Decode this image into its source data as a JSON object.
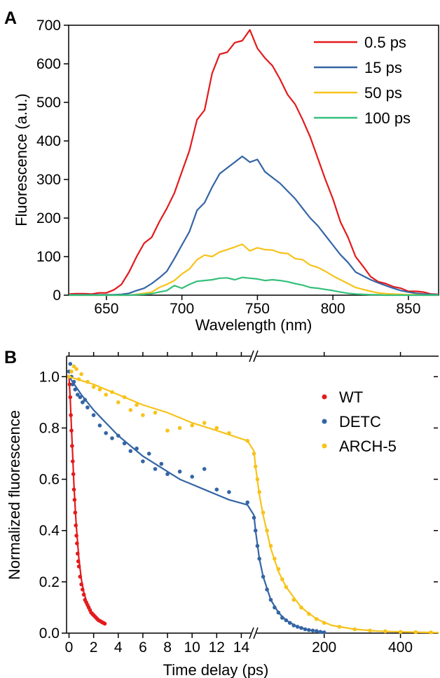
{
  "colors": {
    "red": "#e31a1c",
    "blue": "#3465a4",
    "yellow": "#f7c31b",
    "green": "#36c07a"
  },
  "chart_data": [
    {
      "panel": "A",
      "type": "line",
      "xlabel": "Wavelength (nm)",
      "ylabel": "Fluorescence (a.u.)",
      "xlim": [
        625,
        870
      ],
      "ylim": [
        0,
        700
      ],
      "xticks": [
        650,
        700,
        750,
        800,
        850
      ],
      "yticks": [
        0,
        100,
        200,
        300,
        400,
        500,
        600,
        700
      ],
      "legend_position": "top-right",
      "series": [
        {
          "name": "0.5 ps",
          "color": "#e31a1c",
          "x": [
            625,
            630,
            635,
            640,
            645,
            650,
            655,
            660,
            665,
            670,
            675,
            680,
            685,
            690,
            695,
            700,
            705,
            710,
            715,
            720,
            725,
            730,
            735,
            740,
            745,
            750,
            755,
            760,
            765,
            770,
            775,
            780,
            785,
            790,
            795,
            800,
            805,
            810,
            815,
            820,
            825,
            830,
            835,
            840,
            845,
            850,
            855,
            860,
            865,
            870
          ],
          "y": [
            3,
            4,
            4,
            3,
            6,
            6,
            14,
            28,
            60,
            100,
            135,
            150,
            190,
            225,
            265,
            320,
            375,
            455,
            480,
            575,
            625,
            630,
            655,
            660,
            688,
            640,
            615,
            595,
            560,
            520,
            495,
            455,
            410,
            355,
            300,
            250,
            190,
            150,
            100,
            75,
            48,
            35,
            30,
            22,
            18,
            10,
            10,
            8,
            3,
            2
          ]
        },
        {
          "name": "15 ps",
          "color": "#3465a4",
          "x": [
            625,
            630,
            635,
            640,
            645,
            650,
            655,
            660,
            665,
            670,
            675,
            680,
            685,
            690,
            695,
            700,
            705,
            710,
            715,
            720,
            725,
            730,
            735,
            740,
            745,
            750,
            755,
            760,
            765,
            770,
            775,
            780,
            785,
            790,
            795,
            800,
            805,
            810,
            815,
            820,
            825,
            830,
            835,
            840,
            845,
            850,
            855,
            860,
            865,
            870
          ],
          "y": [
            1,
            1,
            1,
            1,
            1,
            1,
            1,
            2,
            5,
            12,
            18,
            30,
            45,
            62,
            95,
            130,
            165,
            220,
            240,
            280,
            315,
            330,
            345,
            360,
            345,
            352,
            320,
            305,
            290,
            270,
            250,
            225,
            200,
            180,
            155,
            130,
            105,
            85,
            60,
            50,
            40,
            32,
            25,
            18,
            12,
            8,
            5,
            3,
            2,
            1
          ]
        },
        {
          "name": "50 ps",
          "color": "#f7c31b",
          "x": [
            625,
            630,
            635,
            640,
            645,
            650,
            655,
            660,
            665,
            670,
            675,
            680,
            685,
            690,
            695,
            700,
            705,
            710,
            715,
            720,
            725,
            730,
            735,
            740,
            745,
            750,
            755,
            760,
            765,
            770,
            775,
            780,
            785,
            790,
            795,
            800,
            805,
            810,
            815,
            820,
            825,
            830,
            835,
            840,
            845,
            850,
            855,
            860,
            865,
            870
          ],
          "y": [
            0,
            0,
            0,
            0,
            0,
            0,
            0,
            0,
            0,
            2,
            5,
            8,
            20,
            28,
            38,
            55,
            68,
            92,
            104,
            100,
            112,
            118,
            125,
            132,
            115,
            123,
            118,
            117,
            110,
            108,
            95,
            92,
            78,
            72,
            62,
            50,
            40,
            30,
            20,
            15,
            10,
            6,
            4,
            3,
            2,
            1,
            1,
            0,
            0,
            0
          ]
        },
        {
          "name": "100 ps",
          "color": "#36c07a",
          "x": [
            625,
            630,
            635,
            640,
            645,
            650,
            655,
            660,
            665,
            670,
            675,
            680,
            685,
            690,
            695,
            700,
            705,
            710,
            715,
            720,
            725,
            730,
            735,
            740,
            745,
            750,
            755,
            760,
            765,
            770,
            775,
            780,
            785,
            790,
            795,
            800,
            805,
            810,
            815,
            820,
            825,
            830,
            835,
            840,
            845,
            850,
            855,
            860,
            865,
            870
          ],
          "y": [
            0,
            0,
            0,
            0,
            0,
            0,
            0,
            0,
            0,
            1,
            2,
            4,
            8,
            12,
            25,
            18,
            28,
            36,
            38,
            40,
            44,
            45,
            40,
            46,
            44,
            42,
            38,
            40,
            38,
            35,
            30,
            26,
            20,
            18,
            15,
            12,
            8,
            5,
            3,
            2,
            1,
            1,
            0,
            0,
            0,
            0,
            0,
            0,
            0,
            0
          ]
        }
      ]
    },
    {
      "panel": "B",
      "type": "scatter",
      "xlabel": "Time delay (ps)",
      "ylabel": "Normalized fluorescence",
      "axis_break_at": 15,
      "x_segments": [
        {
          "range": [
            -0.2,
            15
          ],
          "scale": "linear",
          "ticks": [
            0,
            2,
            4,
            6,
            8,
            10,
            12,
            14
          ]
        },
        {
          "range": [
            15,
            500
          ],
          "scale": "linear",
          "ticks": [
            200,
            400
          ]
        }
      ],
      "ylim": [
        0,
        1.08
      ],
      "yticks": [
        0.0,
        0.2,
        0.4,
        0.6,
        0.8,
        1.0
      ],
      "legend_position": "right",
      "series": [
        {
          "name": "WT",
          "color": "#e31a1c",
          "points_x": [
            0,
            0.05,
            0.1,
            0.15,
            0.2,
            0.25,
            0.3,
            0.35,
            0.4,
            0.45,
            0.5,
            0.55,
            0.6,
            0.65,
            0.7,
            0.75,
            0.8,
            0.9,
            1.0,
            1.1,
            1.2,
            1.3,
            1.4,
            1.5,
            1.6,
            1.7,
            1.8,
            1.9,
            2.0,
            2.1,
            2.2,
            2.3,
            2.4,
            2.5,
            2.6,
            2.7,
            2.8,
            2.9
          ],
          "points_y": [
            1.0,
            0.97,
            0.92,
            0.85,
            0.79,
            0.73,
            0.67,
            0.62,
            0.56,
            0.52,
            0.47,
            0.42,
            0.38,
            0.35,
            0.31,
            0.28,
            0.26,
            0.22,
            0.19,
            0.17,
            0.15,
            0.13,
            0.12,
            0.11,
            0.1,
            0.09,
            0.08,
            0.075,
            0.07,
            0.065,
            0.06,
            0.055,
            0.05,
            0.048,
            0.045,
            0.042,
            0.04,
            0.037
          ],
          "fit_x": [
            0,
            0.1,
            0.2,
            0.3,
            0.4,
            0.5,
            0.6,
            0.8,
            1.0,
            1.2,
            1.5,
            1.8,
            2.1,
            2.4,
            2.7,
            2.9
          ],
          "fit_y": [
            1.0,
            0.91,
            0.8,
            0.69,
            0.58,
            0.49,
            0.41,
            0.29,
            0.21,
            0.16,
            0.11,
            0.085,
            0.067,
            0.055,
            0.046,
            0.041
          ]
        },
        {
          "name": "DETC",
          "color": "#3465a4",
          "points_x": [
            0,
            0.1,
            0.2,
            0.3,
            0.4,
            0.5,
            0.7,
            0.9,
            1.1,
            1.3,
            1.5,
            2,
            2.5,
            3,
            3.5,
            4,
            4.5,
            5,
            5.5,
            6,
            6.5,
            7,
            7.5,
            8,
            9,
            10,
            11,
            12,
            13,
            14.5,
            16,
            20,
            25,
            30,
            40,
            50,
            60,
            70,
            80,
            90,
            100,
            110,
            120,
            130,
            140,
            150,
            160,
            170,
            180,
            190,
            200
          ],
          "points_y": [
            1.02,
            1.05,
            1.0,
            0.97,
            0.98,
            0.95,
            0.93,
            0.92,
            0.9,
            0.91,
            0.88,
            0.85,
            0.81,
            0.78,
            0.76,
            0.77,
            0.74,
            0.71,
            0.72,
            0.67,
            0.7,
            0.64,
            0.66,
            0.62,
            0.63,
            0.61,
            0.64,
            0.56,
            0.55,
            0.51,
            0.45,
            0.4,
            0.34,
            0.29,
            0.22,
            0.17,
            0.13,
            0.1,
            0.08,
            0.06,
            0.05,
            0.04,
            0.03,
            0.025,
            0.02,
            0.015,
            0.012,
            0.01,
            0.008,
            0.005,
            0.003
          ],
          "fit_x": [
            0,
            1,
            2,
            3,
            4,
            5,
            6,
            7,
            8,
            9,
            10,
            11,
            12,
            13,
            14.5,
            16,
            20,
            30,
            40,
            60,
            80,
            100,
            130,
            160,
            200
          ],
          "fit_y": [
            1.0,
            0.93,
            0.87,
            0.82,
            0.77,
            0.73,
            0.69,
            0.66,
            0.63,
            0.6,
            0.58,
            0.56,
            0.54,
            0.52,
            0.5,
            0.46,
            0.4,
            0.29,
            0.22,
            0.13,
            0.08,
            0.05,
            0.025,
            0.012,
            0.004
          ]
        },
        {
          "name": "ARCH-5",
          "color": "#f7c31b",
          "points_x": [
            0,
            0.2,
            0.4,
            0.6,
            0.8,
            1.0,
            1.5,
            2,
            2.5,
            3,
            3.5,
            4,
            4.5,
            5,
            5.5,
            6,
            7,
            8,
            9,
            10,
            11,
            12,
            13,
            14.5,
            16,
            20,
            25,
            30,
            40,
            50,
            60,
            70,
            80,
            90,
            100,
            120,
            140,
            160,
            180,
            200,
            240,
            280,
            320,
            360,
            400,
            440,
            480
          ],
          "points_y": [
            1.0,
            1.02,
            1.04,
            1.03,
            0.99,
            1.01,
            0.98,
            0.96,
            0.95,
            0.93,
            0.94,
            0.9,
            0.92,
            0.87,
            0.89,
            0.85,
            0.86,
            0.79,
            0.8,
            0.81,
            0.82,
            0.8,
            0.78,
            0.75,
            0.7,
            0.65,
            0.6,
            0.55,
            0.47,
            0.4,
            0.34,
            0.29,
            0.25,
            0.21,
            0.18,
            0.13,
            0.1,
            0.075,
            0.055,
            0.04,
            0.025,
            0.015,
            0.01,
            0.007,
            0.005,
            0.004,
            0.003
          ],
          "fit_x": [
            0,
            2,
            4,
            6,
            8,
            10,
            12,
            14.5,
            16,
            20,
            30,
            40,
            60,
            80,
            100,
            140,
            180,
            220,
            280,
            340,
            400,
            460,
            500
          ],
          "fit_y": [
            1.0,
            0.97,
            0.93,
            0.89,
            0.86,
            0.82,
            0.79,
            0.75,
            0.71,
            0.65,
            0.54,
            0.46,
            0.33,
            0.24,
            0.18,
            0.1,
            0.055,
            0.03,
            0.015,
            0.008,
            0.005,
            0.003,
            0.002
          ]
        }
      ]
    }
  ]
}
